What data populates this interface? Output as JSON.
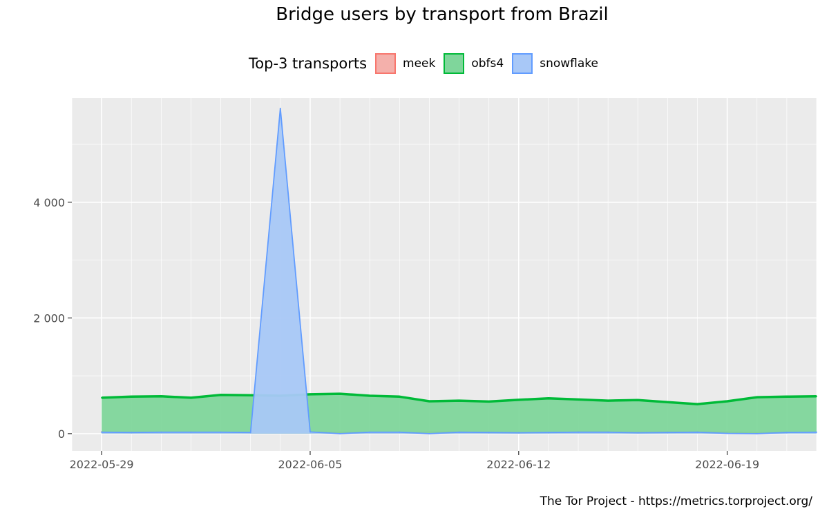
{
  "chart_data": {
    "type": "area",
    "title": "Bridge users by transport from Brazil",
    "xlabel": "",
    "ylabel": "",
    "legend_title": "Top-3 transports",
    "legend_position": "top",
    "grid": true,
    "ylim": [
      -300,
      5800
    ],
    "xlim": [
      "2022-05-28",
      "2022-06-22"
    ],
    "x_ticks": [
      "2022-05-29",
      "2022-06-05",
      "2022-06-12",
      "2022-06-19"
    ],
    "y_ticks": [
      {
        "value": 0,
        "label": "0"
      },
      {
        "value": 2000,
        "label": "2 000"
      },
      {
        "value": 4000,
        "label": "4 000"
      }
    ],
    "x": [
      "2022-05-29",
      "2022-05-30",
      "2022-05-31",
      "2022-06-01",
      "2022-06-02",
      "2022-06-03",
      "2022-06-04",
      "2022-06-05",
      "2022-06-06",
      "2022-06-07",
      "2022-06-08",
      "2022-06-09",
      "2022-06-10",
      "2022-06-11",
      "2022-06-12",
      "2022-06-13",
      "2022-06-14",
      "2022-06-15",
      "2022-06-16",
      "2022-06-17",
      "2022-06-18",
      "2022-06-19",
      "2022-06-20",
      "2022-06-21",
      "2022-06-22"
    ],
    "series": [
      {
        "name": "meek",
        "color": "#F8766D",
        "fill": "#F4B0AB",
        "values": [
          30,
          25,
          25,
          25,
          20,
          15,
          25,
          30,
          25,
          20,
          15,
          30,
          30,
          25,
          20,
          15,
          30,
          30,
          25,
          30,
          30,
          30,
          15,
          25,
          null
        ]
      },
      {
        "name": "obfs4",
        "color": "#00BA38",
        "fill": "#7FD69B",
        "values": [
          620,
          640,
          645,
          620,
          670,
          665,
          655,
          680,
          690,
          655,
          640,
          560,
          570,
          555,
          585,
          610,
          590,
          570,
          580,
          545,
          510,
          560,
          630,
          640,
          645
        ]
      },
      {
        "name": "snowflake",
        "color": "#619CFF",
        "fill": "#A8C8F7",
        "values": [
          25,
          20,
          25,
          25,
          25,
          20,
          5620,
          30,
          0,
          25,
          25,
          0,
          25,
          20,
          15,
          20,
          25,
          25,
          15,
          20,
          25,
          5,
          0,
          20,
          25
        ]
      }
    ]
  },
  "caption": "The Tor Project - https://metrics.torproject.org/"
}
